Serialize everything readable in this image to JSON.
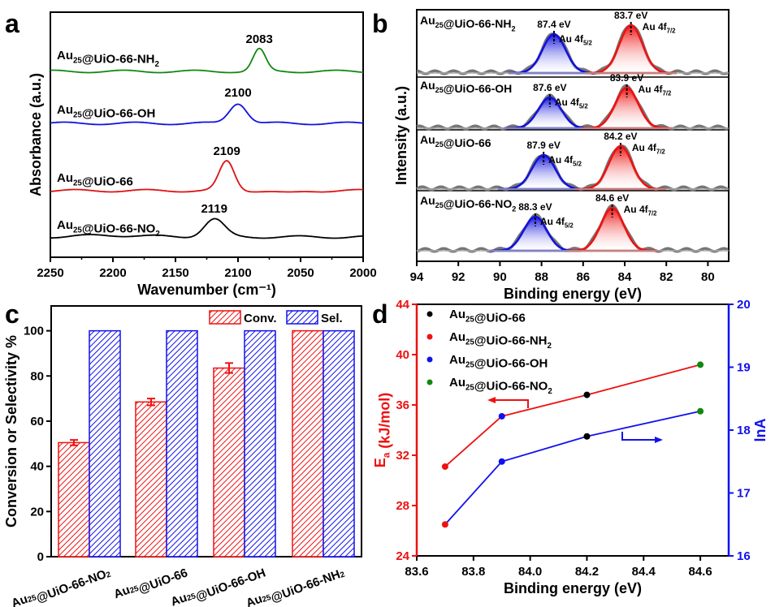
{
  "chart_data": [
    {
      "panel": "a",
      "type": "line",
      "xlabel": "Wavenumber (cm⁻¹)",
      "ylabel": "Absorbance (a.u.)",
      "xlim": [
        2250,
        2000
      ],
      "xticks": [
        2250,
        2200,
        2150,
        2100,
        2050,
        2000
      ],
      "series": [
        {
          "name": "Au25@UiO-66-NH2",
          "label": "Au",
          "sub": "25",
          "rest": "@UiO-66-NH",
          "sub2": "2",
          "color": "#118811",
          "peak": 2083,
          "peak_label": "2083"
        },
        {
          "name": "Au25@UiO-66-OH",
          "label": "Au",
          "sub": "25",
          "rest": "@UiO-66-OH",
          "sub2": "",
          "color": "#1111dd",
          "peak": 2100,
          "peak_label": "2100"
        },
        {
          "name": "Au25@UiO-66",
          "label": "Au",
          "sub": "25",
          "rest": "@UiO-66",
          "sub2": "",
          "color": "#dd1111",
          "peak": 2109,
          "peak_label": "2109"
        },
        {
          "name": "Au25@UiO-66-NO2",
          "label": "Au",
          "sub": "25",
          "rest": "@UiO-66-NO",
          "sub2": "2",
          "color": "#000000",
          "peak": 2119,
          "peak_label": "2119"
        }
      ]
    },
    {
      "panel": "b",
      "type": "area",
      "xlabel": "Binding energy (eV)",
      "ylabel": "Intensity (a.u.)",
      "xlim": [
        94,
        79
      ],
      "xticks": [
        94,
        92,
        90,
        88,
        86,
        84,
        82,
        80
      ],
      "series": [
        {
          "name": "Au25@UiO-66-NH2",
          "rest": "@UiO-66-NH",
          "sub2": "2",
          "f52": 87.4,
          "f72": 83.7,
          "f52_label": "87.4 eV",
          "f72_label": "83.7 eV"
        },
        {
          "name": "Au25@UiO-66-OH",
          "rest": "@UiO-66-OH",
          "sub2": "",
          "f52": 87.6,
          "f72": 83.9,
          "f52_label": "87.6 eV",
          "f72_label": "83.9 eV"
        },
        {
          "name": "Au25@UiO-66",
          "rest": "@UiO-66",
          "sub2": "",
          "f52": 87.9,
          "f72": 84.2,
          "f52_label": "87.9 eV",
          "f72_label": "84.2 eV"
        },
        {
          "name": "Au25@UiO-66-NO2",
          "rest": "@UiO-66-NO",
          "sub2": "2",
          "f52": 88.3,
          "f72": 84.6,
          "f52_label": "88.3 eV",
          "f72_label": "84.6 eV"
        }
      ],
      "peak_names": {
        "f52": "Au 4f",
        "f52_sub": "5/2",
        "f72": "Au 4f",
        "f72_sub": "7/2"
      }
    },
    {
      "panel": "c",
      "type": "bar",
      "ylabel": "Conversion or Selectivity %",
      "ylim": [
        0,
        111
      ],
      "yticks": [
        0,
        20,
        40,
        60,
        80,
        100
      ],
      "categories": [
        {
          "rest": "@UiO-66-NO",
          "sub2": "2"
        },
        {
          "rest": "@UiO-66",
          "sub2": ""
        },
        {
          "rest": "@UiO-66-OH",
          "sub2": ""
        },
        {
          "rest": "@UiO-66-NH",
          "sub2": "2"
        }
      ],
      "series": [
        {
          "name": "Conv.",
          "color": "#ee1111",
          "values": [
            50.5,
            68.5,
            83.5,
            100
          ],
          "errors": [
            1.2,
            1.5,
            2.2,
            0
          ]
        },
        {
          "name": "Sel.",
          "color": "#1111ee",
          "values": [
            100,
            100,
            100,
            100
          ]
        }
      ],
      "legend": "top-right"
    },
    {
      "panel": "d",
      "type": "line",
      "xlabel": "Binding energy (eV)",
      "ylabel_left": "E",
      "ylabel_left_sub": "a",
      "ylabel_left_rest": " (kJ/mol)",
      "ylabel_right": "lnA",
      "xlim": [
        83.6,
        84.7
      ],
      "xticks": [
        83.6,
        83.8,
        84.0,
        84.2,
        84.4,
        84.6
      ],
      "ylim_left": [
        24,
        44
      ],
      "yticks_left": [
        24,
        28,
        32,
        36,
        40,
        44
      ],
      "ylim_right": [
        16,
        20
      ],
      "yticks_right": [
        16,
        17,
        18,
        19,
        20
      ],
      "x": [
        83.7,
        83.9,
        84.2,
        84.6
      ],
      "Ea": [
        31.1,
        35.1,
        36.8,
        39.2
      ],
      "lnA": [
        16.5,
        17.5,
        17.9,
        18.3
      ],
      "point_colors": [
        "#ee1111",
        "#1111ee",
        "#000000",
        "#118811"
      ],
      "legend": [
        {
          "rest": "@UiO-66",
          "sub2": "",
          "color": "#000000"
        },
        {
          "rest": "@UiO-66-NH",
          "sub2": "2",
          "color": "#ee1111"
        },
        {
          "rest": "@UiO-66-OH",
          "sub2": "",
          "color": "#1111ee"
        },
        {
          "rest": "@UiO-66-NO",
          "sub2": "2",
          "color": "#118811"
        }
      ]
    }
  ],
  "panel_letters": [
    "a",
    "b",
    "c",
    "d"
  ]
}
